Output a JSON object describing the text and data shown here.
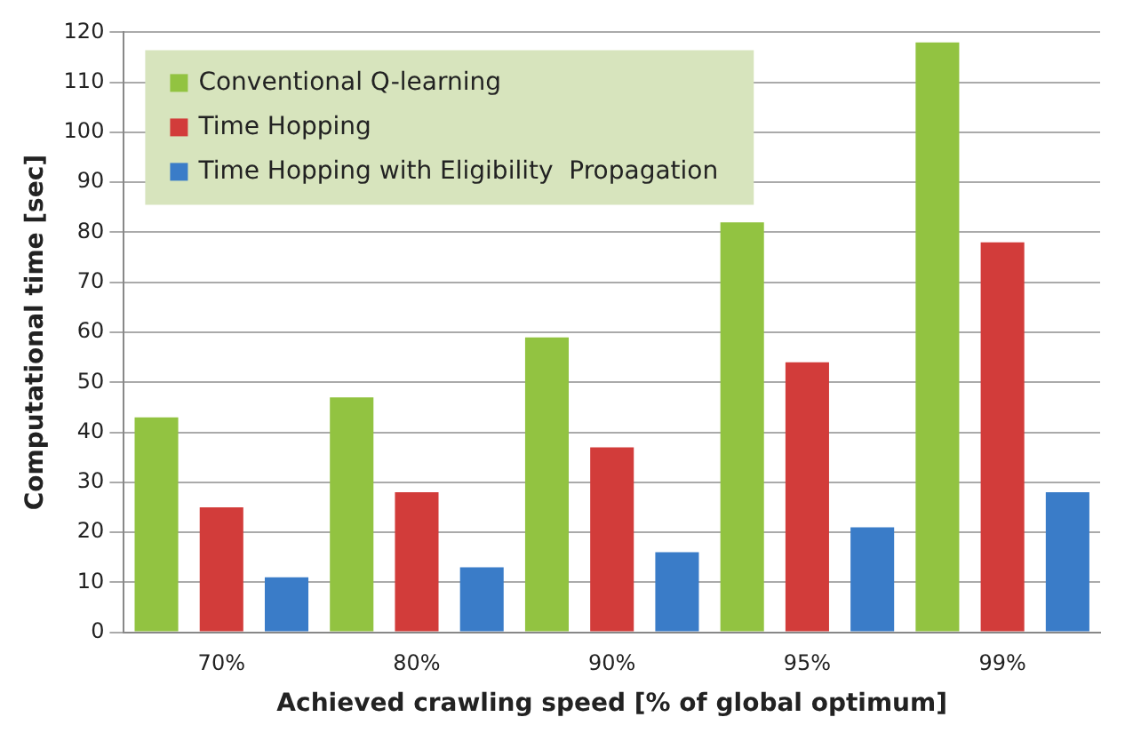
{
  "chart_data": {
    "type": "bar",
    "xlabel": "Achieved crawling speed [% of global optimum]",
    "ylabel": "Computational time [sec]",
    "categories": [
      "70%",
      "80%",
      "90%",
      "95%",
      "99%"
    ],
    "series": [
      {
        "name": "Conventional Q-learning",
        "color": "#92c341",
        "values": [
          43,
          47,
          59,
          82,
          118
        ]
      },
      {
        "name": "Time Hopping",
        "color": "#d23c3a",
        "values": [
          25,
          28,
          37,
          54,
          78
        ]
      },
      {
        "name": "Time Hopping with Eligibility  Propagation",
        "color": "#3a7cc8",
        "values": [
          11,
          13,
          16,
          21,
          28
        ]
      }
    ],
    "ylim": [
      0,
      120
    ],
    "yticks": [
      0,
      10,
      20,
      30,
      40,
      50,
      60,
      70,
      80,
      90,
      100,
      110,
      120
    ],
    "grid": "y",
    "legend": "top left"
  }
}
